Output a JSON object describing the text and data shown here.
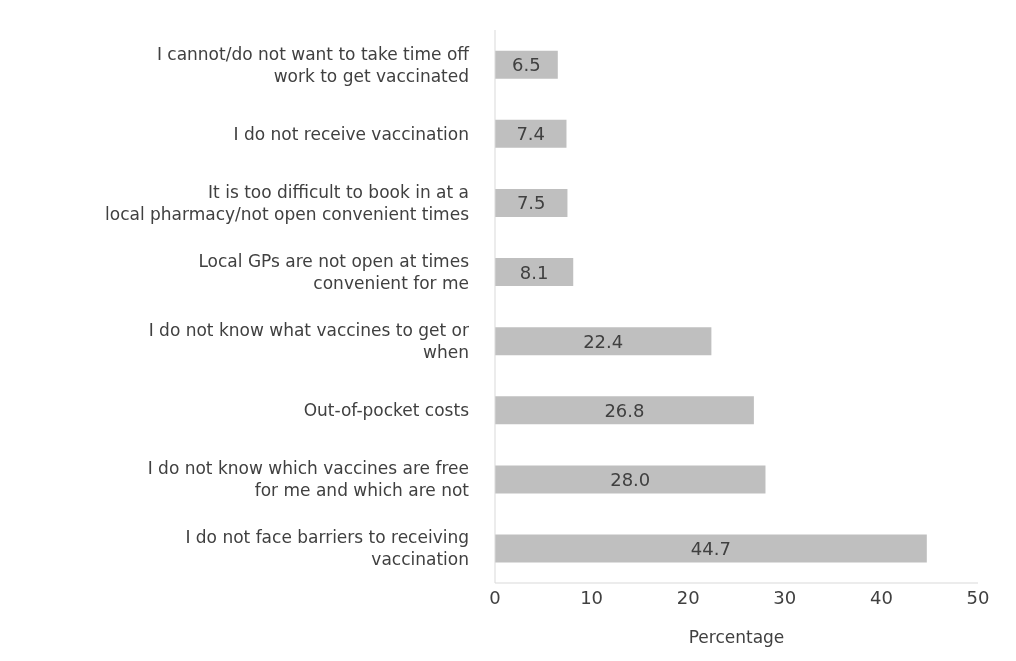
{
  "chart_data": {
    "type": "bar",
    "orientation": "horizontal",
    "xlabel": "Percentage",
    "categories": [
      "I cannot/do not want to take time off work to get vaccinated",
      "I do not receive vaccination",
      "It is too difficult to book in at a local pharmacy/not open convenient times",
      "Local GPs are not open at times convenient for me",
      "I do not know what vaccines to get or when",
      "Out-of-pocket costs",
      "I do not know which vaccines are free for me and which are not",
      "I do not face barriers to receiving vaccination"
    ],
    "values": [
      6.5,
      7.4,
      7.5,
      8.1,
      22.4,
      26.8,
      28.0,
      44.7
    ],
    "value_labels": [
      "6.5",
      "7.4",
      "7.5",
      "8.1",
      "22.4",
      "26.8",
      "28.0",
      "44.7"
    ],
    "color": "#bfbfbf",
    "xlim": [
      0,
      50
    ],
    "xticks": [
      0,
      10,
      20,
      30,
      40,
      50
    ],
    "grid": false
  }
}
